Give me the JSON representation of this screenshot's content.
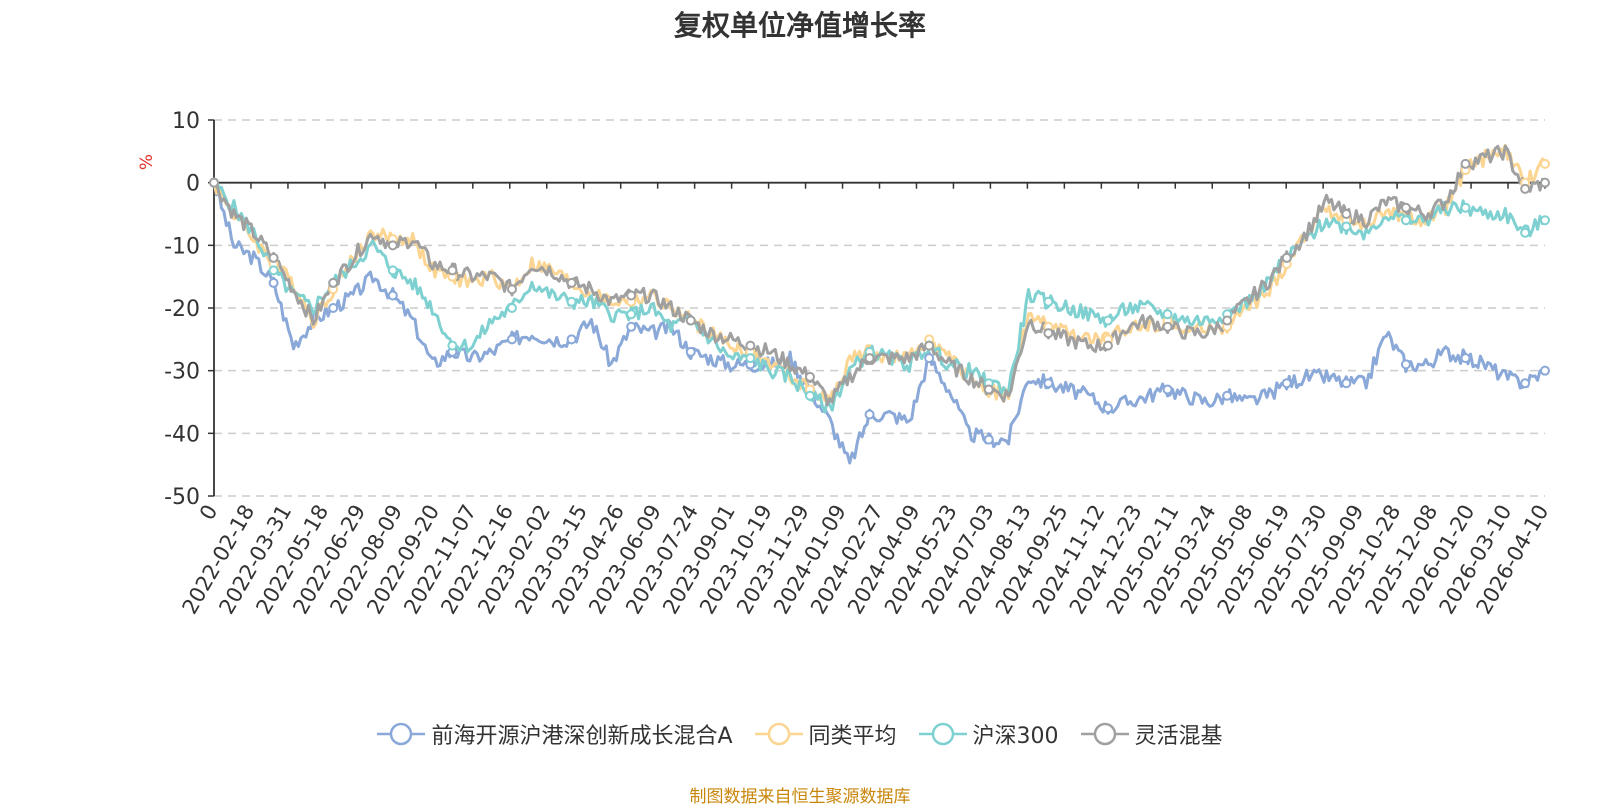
{
  "chart_data": {
    "type": "line",
    "title": "复权单位净值增长率",
    "ylabel": "%",
    "ylim": [
      -50,
      10
    ],
    "yticks": [
      10,
      0,
      -10,
      -20,
      -30,
      -40,
      -50
    ],
    "x_labels": [
      "0",
      "2022-02-18",
      "2022-03-31",
      "2022-05-18",
      "2022-06-29",
      "2022-08-09",
      "2022-09-20",
      "2022-11-07",
      "2022-12-16",
      "2023-02-02",
      "2023-03-15",
      "2023-04-26",
      "2023-06-09",
      "2023-07-24",
      "2023-09-01",
      "2023-10-19",
      "2023-11-29",
      "2024-01-09",
      "2024-02-27",
      "2024-04-09",
      "2024-05-23",
      "2024-07-03",
      "2024-08-13",
      "2024-09-25",
      "2024-11-12",
      "2024-12-23",
      "2025-02-11",
      "2025-03-24",
      "2025-05-08",
      "2025-06-19",
      "2025-07-30",
      "2025-09-09",
      "2025-10-28",
      "2025-12-08",
      "2026-01-20",
      "2026-03-10",
      "2026-04-10"
    ],
    "series": [
      {
        "name": "前海开源沪港深创新成长混合A",
        "color": "#8aa8d8",
        "values": [
          0,
          -10,
          -12,
          -16,
          -26,
          -22,
          -20,
          -18,
          -15,
          -18,
          -22,
          -29,
          -27,
          -28,
          -27,
          -25,
          -24,
          -25,
          -25,
          -22,
          -29,
          -23,
          -24,
          -23,
          -27,
          -28,
          -29,
          -29,
          -29,
          -28,
          -33,
          -38,
          -45,
          -37,
          -37,
          -38,
          -28,
          -33,
          -40,
          -41,
          -41,
          -31,
          -32,
          -33,
          -34,
          -36,
          -35,
          -34,
          -33,
          -34,
          -35,
          -34,
          -35,
          -34,
          -32,
          -31,
          -31,
          -32,
          -32,
          -24,
          -29,
          -29,
          -27,
          -28,
          -29,
          -31,
          -32,
          -30
        ]
      },
      {
        "name": "同类平均",
        "color": "#fbd591",
        "values": [
          0,
          -5,
          -9,
          -13,
          -16,
          -22,
          -17,
          -12,
          -8,
          -9,
          -9,
          -14,
          -15,
          -16,
          -15,
          -17,
          -13,
          -14,
          -16,
          -18,
          -19,
          -19,
          -18,
          -20,
          -22,
          -24,
          -26,
          -27,
          -29,
          -31,
          -33,
          -35,
          -28,
          -27,
          -28,
          -28,
          -25,
          -28,
          -31,
          -33,
          -34,
          -21,
          -23,
          -24,
          -25,
          -25,
          -23,
          -23,
          -22,
          -24,
          -23,
          -23,
          -20,
          -18,
          -13,
          -8,
          -4,
          -6,
          -7,
          -4,
          -6,
          -6,
          -4,
          2,
          4,
          5,
          0,
          3
        ]
      },
      {
        "name": "沪深300",
        "color": "#7fd1d1",
        "values": [
          0,
          -4,
          -8,
          -14,
          -18,
          -20,
          -16,
          -13,
          -10,
          -14,
          -16,
          -20,
          -26,
          -26,
          -22,
          -20,
          -16,
          -18,
          -19,
          -19,
          -21,
          -21,
          -20,
          -23,
          -22,
          -25,
          -28,
          -28,
          -30,
          -31,
          -34,
          -36,
          -30,
          -27,
          -28,
          -29,
          -26,
          -29,
          -30,
          -32,
          -33,
          -18,
          -19,
          -20,
          -21,
          -22,
          -20,
          -20,
          -21,
          -22,
          -22,
          -21,
          -19,
          -16,
          -12,
          -9,
          -6,
          -7,
          -8,
          -5,
          -6,
          -6,
          -4,
          -4,
          -5,
          -5,
          -8,
          -6
        ]
      },
      {
        "name": "灵活混基",
        "color": "#a0a0a0",
        "values": [
          0,
          -5,
          -8,
          -12,
          -17,
          -22,
          -16,
          -12,
          -8,
          -10,
          -9,
          -13,
          -14,
          -15,
          -15,
          -17,
          -13,
          -14,
          -16,
          -17,
          -19,
          -18,
          -18,
          -20,
          -22,
          -24,
          -25,
          -26,
          -27,
          -29,
          -31,
          -35,
          -31,
          -28,
          -28,
          -28,
          -26,
          -29,
          -31,
          -33,
          -34,
          -22,
          -24,
          -25,
          -26,
          -26,
          -23,
          -22,
          -23,
          -24,
          -24,
          -22,
          -19,
          -16,
          -12,
          -8,
          -3,
          -5,
          -6,
          -3,
          -4,
          -5,
          -3,
          3,
          4,
          5,
          -1,
          0
        ]
      }
    ]
  },
  "source_text": "制图数据来自恒生聚源数据库"
}
